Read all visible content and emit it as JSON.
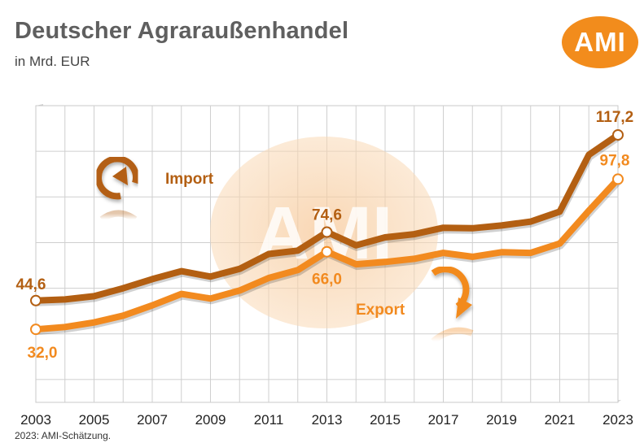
{
  "chart_data": {
    "type": "line",
    "title": "Deutscher Agraraußenhandel",
    "subtitle": "in Mrd. EUR",
    "footnote": "2023: AMI-Schätzung.",
    "logo_text": "AMI",
    "watermark_text": "AMI",
    "x": [
      2003,
      2004,
      2005,
      2006,
      2007,
      2008,
      2009,
      2010,
      2011,
      2012,
      2013,
      2014,
      2015,
      2016,
      2017,
      2018,
      2019,
      2020,
      2021,
      2022,
      2023
    ],
    "x_tick_labels": [
      "2003",
      "2005",
      "2007",
      "2009",
      "2011",
      "2013",
      "2015",
      "2017",
      "2019",
      "2021",
      "2023"
    ],
    "ylim": [
      0,
      130
    ],
    "grid": true,
    "series": [
      {
        "name": "Import",
        "color": "#b35f12",
        "values": [
          44.6,
          45.1,
          46.5,
          50.0,
          54.0,
          57.5,
          55.1,
          58.5,
          65.0,
          66.5,
          74.6,
          68.8,
          72.3,
          73.7,
          76.5,
          76.3,
          77.5,
          79.2,
          83.6,
          108.5,
          117.2
        ]
      },
      {
        "name": "Export",
        "color": "#f28a1f",
        "values": [
          32.0,
          33.0,
          35.0,
          38.0,
          42.5,
          47.5,
          45.5,
          49.0,
          54.5,
          58.0,
          66.0,
          60.5,
          61.5,
          62.9,
          65.5,
          63.8,
          65.8,
          65.5,
          69.6,
          84.0,
          97.8
        ]
      }
    ],
    "annotations": [
      {
        "series": "Import",
        "year": 2003,
        "text": "44,6"
      },
      {
        "series": "Import",
        "year": 2013,
        "text": "74,6"
      },
      {
        "series": "Import",
        "year": 2023,
        "text": "117,2"
      },
      {
        "series": "Export",
        "year": 2003,
        "text": "32,0"
      },
      {
        "series": "Export",
        "year": 2013,
        "text": "66,0"
      },
      {
        "series": "Export",
        "year": 2023,
        "text": "97,8"
      }
    ]
  }
}
